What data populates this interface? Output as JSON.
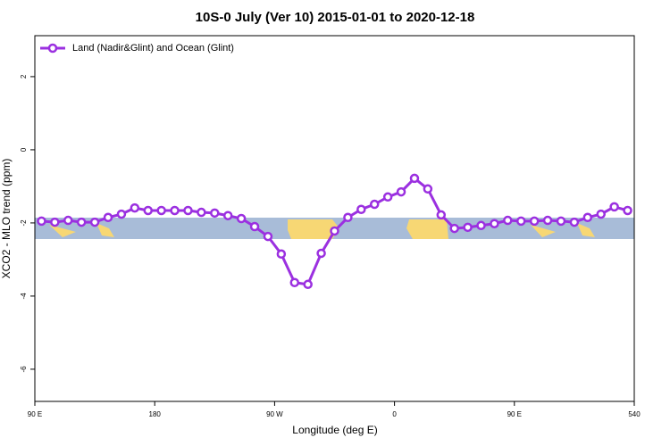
{
  "chart_data": {
    "type": "line",
    "title": "10S-0 July (Ver 10)   2015-01-01 to 2020-12-18",
    "x_label": "Longitude (deg E)",
    "y_label": "XCO2 - MLO trend (ppm)",
    "x": [
      95,
      105,
      115,
      125,
      135,
      145,
      155,
      165,
      175,
      185,
      195,
      205,
      215,
      225,
      235,
      245,
      255,
      265,
      275,
      285,
      295,
      305,
      315,
      325,
      335,
      345,
      355,
      365,
      375,
      385,
      395,
      405,
      415,
      425,
      435,
      445,
      455,
      465,
      475,
      485,
      495,
      505,
      515,
      525,
      535
    ],
    "series": [
      {
        "name": "Land (Nadir&Glint) and Ocean (Glint)",
        "color": "#9b30e0",
        "values": [
          -1.95,
          -1.98,
          -1.93,
          -1.98,
          -1.98,
          -1.85,
          -1.76,
          -1.59,
          -1.66,
          -1.66,
          -1.66,
          -1.66,
          -1.71,
          -1.73,
          -1.8,
          -1.88,
          -2.1,
          -2.37,
          -2.85,
          -3.63,
          -3.68,
          -2.83,
          -2.22,
          -1.85,
          -1.63,
          -1.49,
          -1.29,
          -1.15,
          -0.78,
          -1.07,
          -1.78,
          -2.15,
          -2.12,
          -2.07,
          -2.02,
          -1.93,
          -1.95,
          -1.95,
          -1.93,
          -1.95,
          -1.98,
          -1.85,
          -1.76,
          -1.56,
          -1.66
        ]
      }
    ],
    "xlim": [
      90,
      540
    ],
    "xticks": [
      {
        "value": 90,
        "label": "90 E"
      },
      180,
      {
        "value": 270,
        "label": "90 W"
      },
      {
        "value": 360,
        "label": "0"
      },
      {
        "value": 450,
        "label": "90 E"
      },
      540
    ],
    "ylim": [
      -6.88,
      3.12
    ],
    "yticks": [
      2,
      0,
      -2,
      -4,
      -6
    ],
    "legend": "top-left"
  }
}
